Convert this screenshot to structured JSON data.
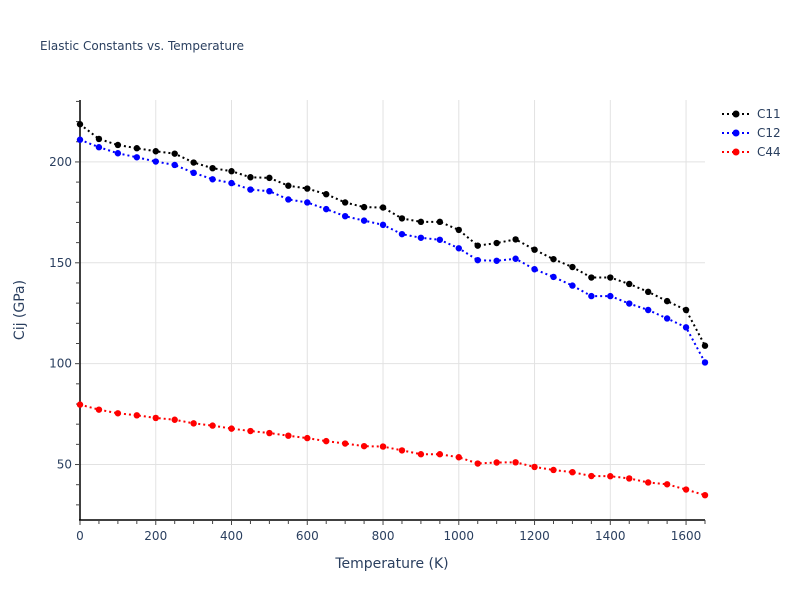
{
  "chart_data": {
    "type": "line",
    "title": "Elastic Constants vs. Temperature",
    "xlabel": "Temperature (K)",
    "ylabel": "Cij (GPa)",
    "xlim": [
      0,
      1650
    ],
    "ylim": [
      22.5,
      230.7
    ],
    "xticks": [
      0,
      200,
      400,
      600,
      800,
      1000,
      1200,
      1400,
      1600
    ],
    "yticks": [
      50,
      100,
      150,
      200
    ],
    "x_minor_step": 50,
    "y_minor_step": 10,
    "grid": true,
    "legend_position": "top-right",
    "line_style": "dotted with circle markers",
    "x": [
      0,
      50,
      100,
      150,
      200,
      250,
      300,
      350,
      400,
      450,
      500,
      550,
      600,
      650,
      700,
      750,
      800,
      850,
      900,
      950,
      1000,
      1050,
      1100,
      1150,
      1200,
      1250,
      1300,
      1350,
      1400,
      1450,
      1500,
      1550,
      1600,
      1650
    ],
    "series": [
      {
        "name": "C11",
        "color": "#000000",
        "values": [
          218.7,
          211.4,
          208.4,
          206.8,
          205.3,
          204.1,
          199.7,
          196.9,
          195.4,
          192.4,
          192.1,
          188.2,
          186.8,
          184.0,
          179.9,
          177.6,
          177.4,
          172.0,
          170.3,
          170.3,
          166.3,
          158.5,
          159.8,
          161.6,
          156.5,
          151.8,
          147.9,
          142.7,
          142.7,
          139.5,
          135.6,
          131.0,
          126.6,
          108.9
        ]
      },
      {
        "name": "C12",
        "color": "#0000ff",
        "values": [
          211.0,
          207.3,
          204.3,
          202.3,
          200.2,
          198.5,
          194.6,
          191.4,
          189.5,
          186.3,
          185.5,
          181.4,
          179.9,
          176.6,
          173.1,
          170.9,
          168.8,
          164.2,
          162.4,
          161.4,
          157.2,
          151.3,
          151.0,
          152.0,
          146.8,
          143.0,
          138.7,
          133.5,
          133.5,
          129.8,
          126.6,
          122.4,
          118.0,
          100.6
        ]
      },
      {
        "name": "C44",
        "color": "#ff0000",
        "values": [
          79.7,
          77.2,
          75.4,
          74.4,
          73.1,
          72.2,
          70.4,
          69.3,
          67.8,
          66.6,
          65.6,
          64.3,
          63.1,
          61.6,
          60.4,
          59.1,
          58.9,
          57.0,
          55.1,
          55.1,
          53.6,
          50.5,
          51.0,
          51.1,
          48.8,
          47.3,
          46.2,
          44.3,
          44.2,
          43.1,
          41.1,
          40.2,
          37.6,
          34.8
        ]
      }
    ]
  }
}
